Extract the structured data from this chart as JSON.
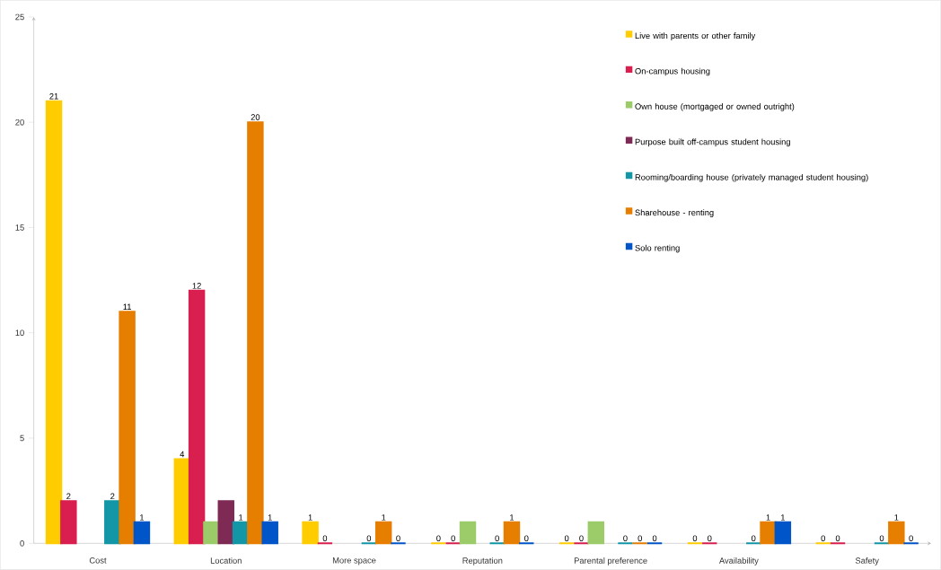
{
  "chart_data": {
    "type": "bar",
    "categories": [
      "Cost",
      "Location",
      "More space",
      "Reputation",
      "Parental preference",
      "Availability",
      "Safety"
    ],
    "ylim": [
      0,
      25
    ],
    "yticks": [
      0,
      5,
      10,
      15,
      20,
      25
    ],
    "legend": "top right",
    "series": [
      {
        "name": "Live with parents or other family",
        "color": "#ffcc00",
        "values": [
          21,
          4,
          1,
          0,
          0,
          0,
          0
        ],
        "value_labels": [
          "21",
          "4",
          "1",
          "0",
          "0",
          "0",
          "0"
        ]
      },
      {
        "name": "On-campus housing",
        "color": "#d91f4f",
        "values": [
          2,
          12,
          0,
          0,
          0,
          0,
          0
        ],
        "value_labels": [
          "2",
          "12",
          "0",
          "0",
          "0",
          "0",
          "0"
        ]
      },
      {
        "name": "Own house (mortgaged or owned outright)",
        "color": "#9ccc6a",
        "values": [
          null,
          1,
          null,
          1,
          1,
          null,
          null
        ],
        "value_labels": [
          null,
          null,
          null,
          null,
          null,
          null,
          null
        ]
      },
      {
        "name": "Purpose built off-campus student housing",
        "color": "#7f2a55",
        "values": [
          null,
          2,
          null,
          null,
          null,
          null,
          null
        ],
        "value_labels": [
          null,
          null,
          null,
          null,
          null,
          null,
          null
        ]
      },
      {
        "name": "Rooming/boarding house (privately managed student housing)",
        "color": "#1396a6",
        "values": [
          2,
          1,
          0,
          0,
          0,
          0,
          0
        ],
        "value_labels": [
          "2",
          "1",
          "0",
          "0",
          "0",
          "0",
          "0"
        ]
      },
      {
        "name": "Sharehouse - renting",
        "color": "#e67e00",
        "values": [
          11,
          20,
          1,
          1,
          0,
          1,
          1
        ],
        "value_labels": [
          "11",
          "20",
          "1",
          "1",
          "0",
          "1",
          "1"
        ]
      },
      {
        "name": "Solo renting",
        "color": "#0055c8",
        "values": [
          1,
          1,
          0,
          0,
          0,
          1,
          0
        ],
        "value_labels": [
          "1",
          "1",
          "0",
          "0",
          "0",
          "1",
          "0"
        ]
      }
    ]
  }
}
